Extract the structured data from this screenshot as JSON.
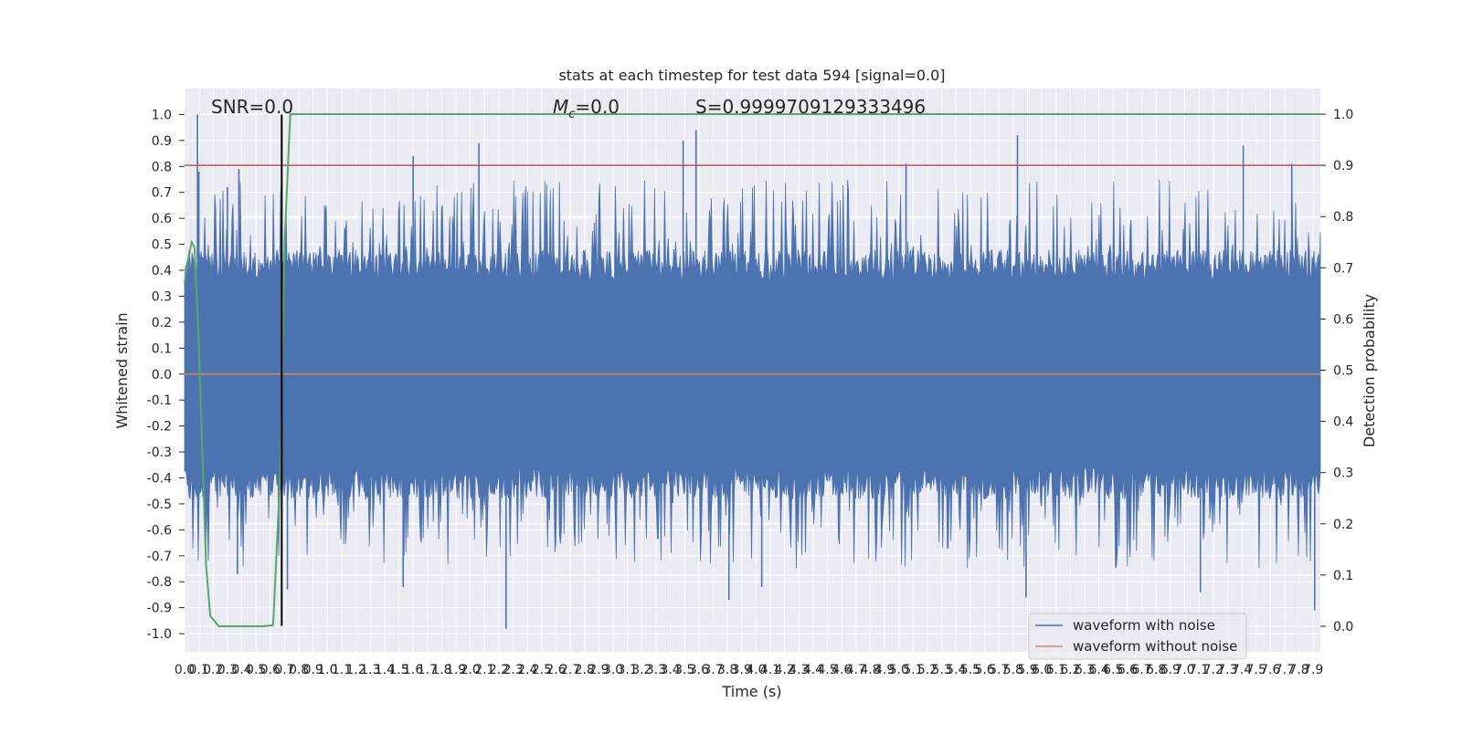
{
  "chart_data": {
    "type": "line",
    "title": "stats at each timestep for test data 594 [signal=0.0]",
    "xlabel": "Time (s)",
    "ylabel": "Whitened strain",
    "y2label": "Detection probability",
    "annotations": {
      "snr": "SNR=0.0",
      "mc_symbol": "M",
      "mc_subscript": "c",
      "mc_value": "=0.0",
      "s": "S=0.9999709129333496"
    },
    "xlim": [
      0.0,
      7.95
    ],
    "ylim": [
      -1.07,
      1.1
    ],
    "y2lim": [
      -0.05,
      1.05
    ],
    "x_ticks": [
      "0.0",
      "0.1",
      "0.2",
      "0.3",
      "0.4",
      "0.5",
      "0.6",
      "0.7",
      "0.8",
      "0.9",
      "1.0",
      "1.1",
      "1.2",
      "1.3",
      "1.4",
      "1.5",
      "1.6",
      "1.7",
      "1.8",
      "1.9",
      "2.0",
      "2.1",
      "2.2",
      "2.3",
      "2.4",
      "2.5",
      "2.6",
      "2.7",
      "2.8",
      "2.9",
      "3.0",
      "3.1",
      "3.2",
      "3.3",
      "3.4",
      "3.5",
      "3.6",
      "3.7",
      "3.8",
      "3.9",
      "4.0",
      "4.1",
      "4.2",
      "4.3",
      "4.4",
      "4.5",
      "4.6",
      "4.7",
      "4.8",
      "4.9",
      "5.0",
      "5.1",
      "5.2",
      "5.3",
      "5.4",
      "5.5",
      "5.6",
      "5.7",
      "5.8",
      "5.9",
      "6.0",
      "6.1",
      "6.2",
      "6.3",
      "6.4",
      "6.5",
      "6.6",
      "6.7",
      "6.8",
      "6.9",
      "7.0",
      "7.1",
      "7.2",
      "7.3",
      "7.4",
      "7.5",
      "7.6",
      "7.7",
      "7.8",
      "7.9"
    ],
    "y_ticks": [
      "-1.0",
      "-0.9",
      "-0.8",
      "-0.7",
      "-0.6",
      "-0.5",
      "-0.4",
      "-0.3",
      "-0.2",
      "-0.1",
      "0.0",
      "0.1",
      "0.2",
      "0.3",
      "0.4",
      "0.5",
      "0.6",
      "0.7",
      "0.8",
      "0.9",
      "1.0"
    ],
    "y2_ticks": [
      "0.0",
      "0.1",
      "0.2",
      "0.3",
      "0.4",
      "0.5",
      "0.6",
      "0.7",
      "0.8",
      "0.9",
      "1.0"
    ],
    "grid": true,
    "legend_position": "lower-right",
    "series": [
      {
        "name": "waveform with noise",
        "color": "#4c72b0",
        "description_values": "dense noise, values mostly within ±0.45, peaks up to 1.0",
        "peaks": [
          {
            "x": 0.09,
            "y": 1.0
          },
          {
            "x": 0.1,
            "y": 0.78
          },
          {
            "x": 0.3,
            "y": 0.72
          },
          {
            "x": 0.38,
            "y": 0.79
          },
          {
            "x": 1.6,
            "y": 0.84
          },
          {
            "x": 2.06,
            "y": 0.89
          },
          {
            "x": 3.49,
            "y": 0.9
          },
          {
            "x": 3.58,
            "y": 0.94
          },
          {
            "x": 5.05,
            "y": 0.81
          },
          {
            "x": 5.83,
            "y": 0.92
          },
          {
            "x": 7.41,
            "y": 0.88
          },
          {
            "x": 7.75,
            "y": 0.81
          },
          {
            "x": 2.25,
            "y": -0.98
          },
          {
            "x": 3.81,
            "y": -0.87
          },
          {
            "x": 4.04,
            "y": -0.82
          },
          {
            "x": 5.89,
            "y": -0.86
          },
          {
            "x": 7.11,
            "y": -0.84
          },
          {
            "x": 7.91,
            "y": -0.91
          },
          {
            "x": 0.37,
            "y": -0.77
          },
          {
            "x": 1.53,
            "y": -0.82
          },
          {
            "x": 0.72,
            "y": -0.83
          }
        ]
      },
      {
        "name": "waveform without noise",
        "color": "#dd8452",
        "x": [
          0.0,
          7.95
        ],
        "y": [
          0.0,
          0.0
        ]
      },
      {
        "name": "detection probability",
        "axis": "right",
        "color": "#55a868",
        "x": [
          0.0,
          0.02,
          0.05,
          0.07,
          0.1,
          0.15,
          0.18,
          0.24,
          0.4,
          0.55,
          0.62,
          0.67,
          0.7,
          0.74,
          0.8,
          1.0,
          7.95
        ],
        "y": [
          0.67,
          0.71,
          0.75,
          0.74,
          0.55,
          0.12,
          0.02,
          0.0,
          0.0,
          0.0,
          0.002,
          0.3,
          0.75,
          1.0,
          1.0,
          1.0,
          1.0
        ]
      }
    ],
    "threshold": {
      "value": 0.9,
      "axis": "right",
      "color": "#c44e52"
    },
    "vline": {
      "x": 0.68,
      "color": "#000000"
    }
  }
}
